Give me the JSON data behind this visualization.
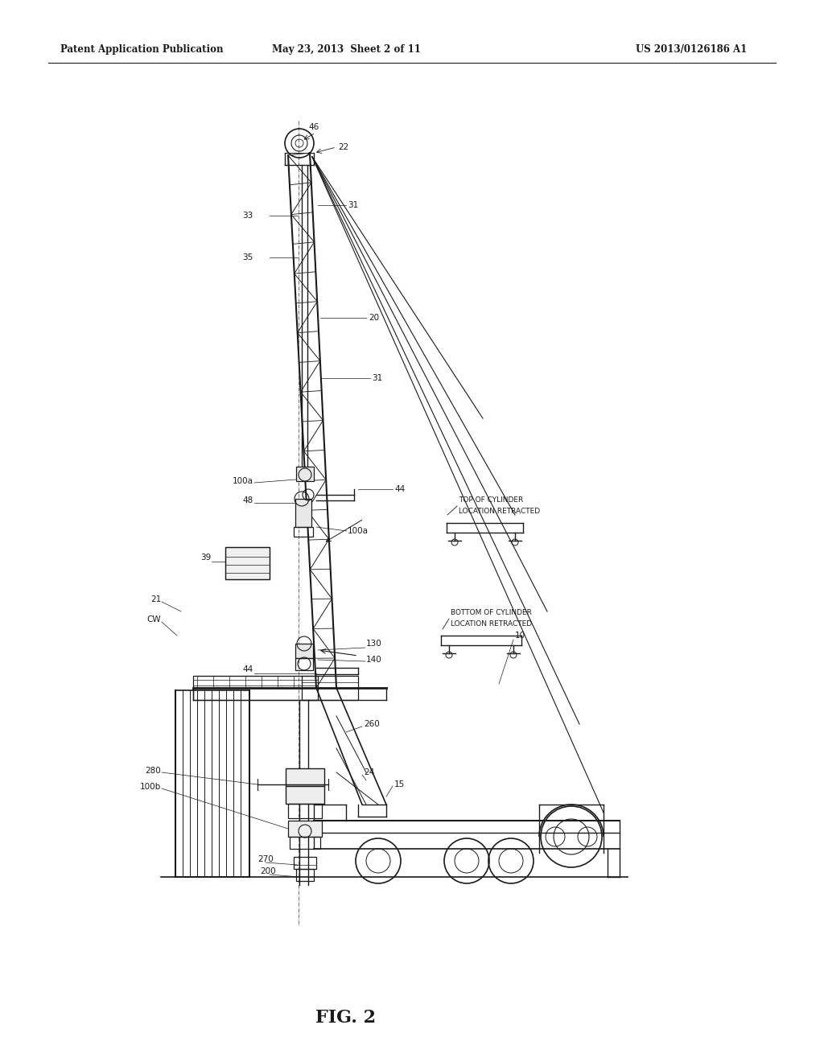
{
  "header_left": "Patent Application Publication",
  "header_mid": "May 23, 2013  Sheet 2 of 11",
  "header_right": "US 2013/0126186 A1",
  "fig_label": "FIG. 2",
  "bg_color": "#ffffff",
  "line_color": "#1a1a1a",
  "annotation_top_cyl": "TOP OF CYLINDER\nLOCATION RETRACTED",
  "annotation_bot_cyl": "BOTTOM OF CYLINDER\nLOCATION RETRACTED"
}
